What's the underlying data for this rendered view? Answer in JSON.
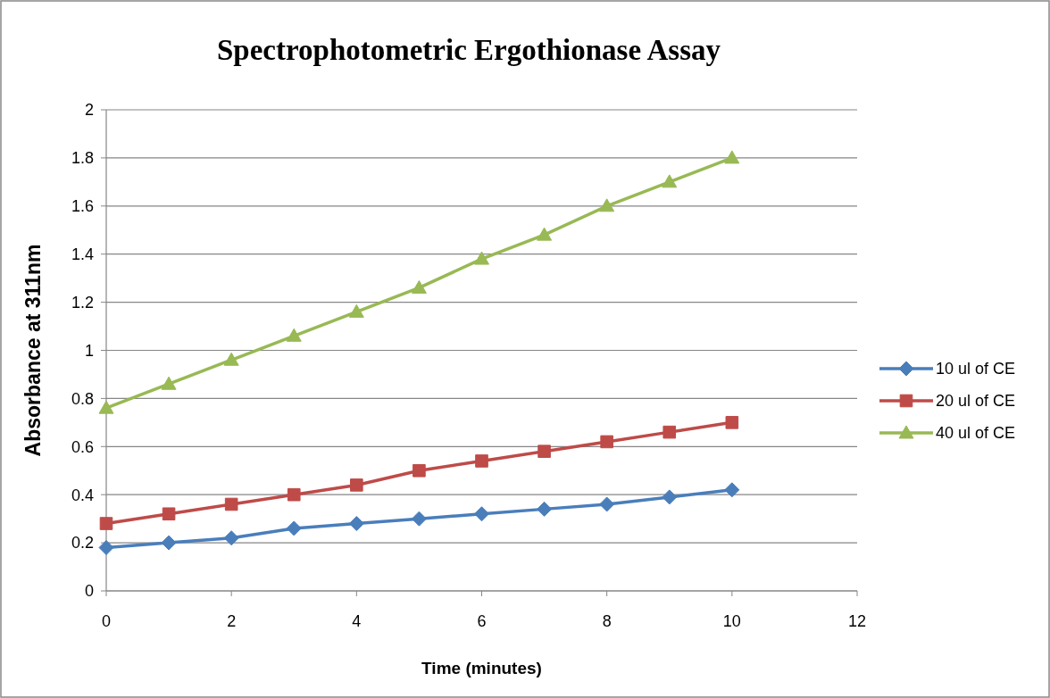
{
  "chart_data": {
    "type": "line",
    "title": "Spectrophotometric Ergothionase Assay",
    "xlabel": "Time (minutes)",
    "ylabel": "Absorbance at 311nm",
    "x": [
      0,
      1,
      2,
      3,
      4,
      5,
      6,
      7,
      8,
      9,
      10
    ],
    "series": [
      {
        "name": "10 ul of CE",
        "color": "#4a7ebb",
        "marker": "diamond",
        "values": [
          0.18,
          0.2,
          0.22,
          0.26,
          0.28,
          0.3,
          0.32,
          0.34,
          0.36,
          0.39,
          0.42
        ]
      },
      {
        "name": "20 ul of CE",
        "color": "#be4b48",
        "marker": "square",
        "values": [
          0.28,
          0.32,
          0.36,
          0.4,
          0.44,
          0.5,
          0.54,
          0.58,
          0.62,
          0.66,
          0.7
        ]
      },
      {
        "name": "40 ul of CE",
        "color": "#98b954",
        "marker": "triangle",
        "values": [
          0.76,
          0.86,
          0.96,
          1.06,
          1.16,
          1.26,
          1.38,
          1.48,
          1.6,
          1.7,
          1.8
        ]
      }
    ],
    "xlim": [
      0,
      12
    ],
    "xticks": [
      0,
      2,
      4,
      6,
      8,
      10,
      12
    ],
    "ylim": [
      0,
      2
    ],
    "yticks": [
      0,
      0.2,
      0.4,
      0.6,
      0.8,
      1,
      1.2,
      1.4,
      1.6,
      1.8,
      2
    ],
    "grid": "y",
    "legend": "right",
    "line_style": "solid"
  }
}
